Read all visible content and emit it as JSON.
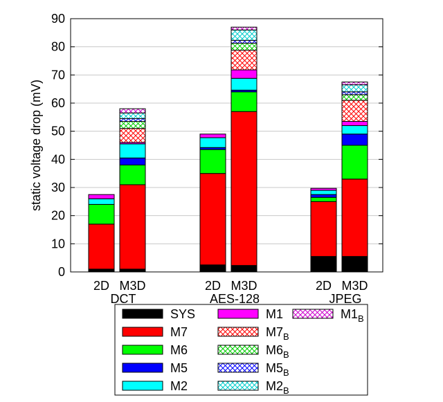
{
  "chart_data": {
    "type": "bar",
    "stacked": true,
    "title": "",
    "xlabel": "",
    "ylabel": "static voltage drop (mV)",
    "ylim": [
      0,
      90
    ],
    "yticks": [
      0,
      10,
      20,
      30,
      40,
      50,
      60,
      70,
      80,
      90
    ],
    "grid": true,
    "legend_position": "bottom-center",
    "groups": [
      {
        "name": "DCT",
        "bars": [
          {
            "label": "2D",
            "values": [
              1,
              16,
              7,
              0,
              2,
              1.5,
              0,
              0,
              0,
              0,
              0
            ]
          },
          {
            "label": "M3D",
            "values": [
              1,
              30,
              7,
              2.5,
              5,
              0.5,
              5,
              2.5,
              1,
              2,
              1.5
            ]
          }
        ]
      },
      {
        "name": "AES-128",
        "bars": [
          {
            "label": "2D",
            "values": [
              2.5,
              32.5,
              8.5,
              0.7,
              3.5,
              1.3,
              0,
              0,
              0,
              0,
              0
            ]
          },
          {
            "label": "M3D",
            "values": [
              2.3,
              54.7,
              7,
              0.6,
              4.2,
              3,
              7,
              2.5,
              1,
              3.7,
              1
            ]
          }
        ]
      },
      {
        "name": "JPEG",
        "bars": [
          {
            "label": "2D",
            "values": [
              5.5,
              19.5,
              1.5,
              1,
              1.5,
              0.7,
              0,
              0,
              0,
              0,
              0
            ]
          },
          {
            "label": "M3D",
            "values": [
              5.5,
              27.5,
              12,
              4,
              3,
              1.5,
              7.5,
              2,
              1,
              2.5,
              1
            ]
          }
        ]
      }
    ],
    "series": [
      {
        "name": "SYS",
        "sub": "",
        "color": "#000000",
        "pattern": "solid"
      },
      {
        "name": "M7",
        "sub": "",
        "color": "#ff0000",
        "pattern": "solid"
      },
      {
        "name": "M6",
        "sub": "",
        "color": "#00ff00",
        "pattern": "solid"
      },
      {
        "name": "M5",
        "sub": "",
        "color": "#0000ff",
        "pattern": "solid"
      },
      {
        "name": "M2",
        "sub": "",
        "color": "#00ffff",
        "pattern": "solid"
      },
      {
        "name": "M1",
        "sub": "",
        "color": "#ff00ff",
        "pattern": "solid"
      },
      {
        "name": "M7",
        "sub": "B",
        "color": "#ff0000",
        "pattern": "crosshatch"
      },
      {
        "name": "M6",
        "sub": "B",
        "color": "#00cc00",
        "pattern": "crosshatch"
      },
      {
        "name": "M5",
        "sub": "B",
        "color": "#0000ff",
        "pattern": "crosshatch"
      },
      {
        "name": "M2",
        "sub": "B",
        "color": "#00cccc",
        "pattern": "crosshatch"
      },
      {
        "name": "M1",
        "sub": "B",
        "color": "#cc00cc",
        "pattern": "crosshatch"
      }
    ]
  }
}
